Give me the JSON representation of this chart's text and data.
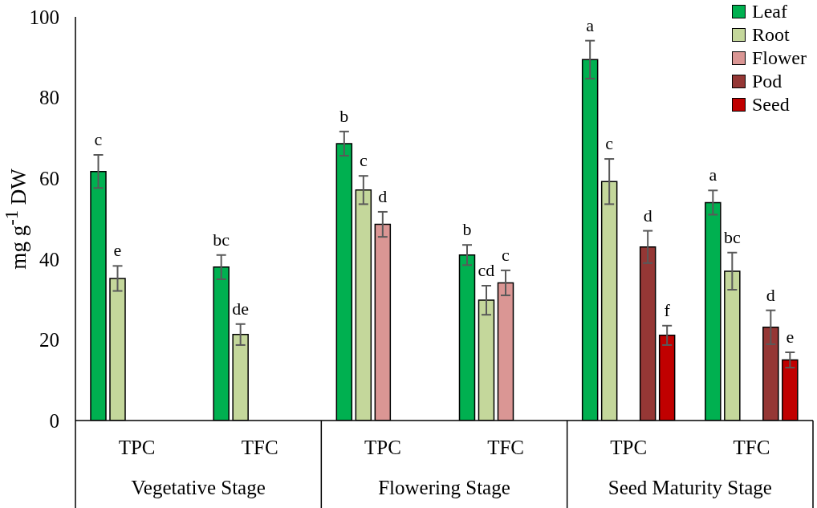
{
  "chart_data": {
    "type": "bar",
    "ylabel": "mg g$^{-1}$ DW",
    "categories": [
      "TPC",
      "TFC",
      "TPC",
      "TFC",
      "TPC",
      "TFC"
    ],
    "annotations": [
      "Vegetative Stage",
      "Flowering Stage",
      "Seed Maturity Stage"
    ],
    "series": [
      {
        "name": "Leaf",
        "color": "#00b050",
        "values": [
          61.7,
          38.0,
          68.6,
          41.0,
          89.4,
          54.0
        ],
        "errors": [
          4.1,
          3.0,
          3.0,
          2.5,
          4.7,
          3.0
        ],
        "value_labels": [
          "c",
          "bc",
          "b",
          "b",
          "a",
          "a"
        ]
      },
      {
        "name": "Root",
        "color": "#c4d79b",
        "values": [
          35.2,
          21.3,
          57.1,
          29.8,
          59.2,
          37.0
        ],
        "errors": [
          3.1,
          2.6,
          3.5,
          3.6,
          5.6,
          4.6
        ],
        "value_labels": [
          "e",
          "de",
          "c",
          "cd",
          "c",
          "bc"
        ]
      },
      {
        "name": "Flower",
        "color": "#da9694",
        "values": [
          null,
          null,
          48.6,
          34.1,
          null,
          null
        ],
        "errors": [
          null,
          null,
          3.1,
          3.1,
          null,
          null
        ],
        "value_labels": [
          null,
          null,
          "d",
          "c",
          null,
          null
        ]
      },
      {
        "name": "Pod",
        "color": "#953735",
        "values": [
          null,
          null,
          null,
          null,
          43.0,
          23.1
        ],
        "errors": [
          null,
          null,
          null,
          null,
          4.0,
          4.2
        ],
        "value_labels": [
          null,
          null,
          null,
          null,
          "d",
          "d"
        ]
      },
      {
        "name": "Seed",
        "color": "#c00000",
        "values": [
          null,
          null,
          null,
          null,
          21.1,
          15.0
        ],
        "errors": [
          null,
          null,
          null,
          null,
          2.4,
          1.9
        ],
        "value_labels": [
          null,
          null,
          null,
          null,
          "f",
          "e"
        ]
      }
    ],
    "ylim": [
      0,
      100
    ],
    "yticks": [
      0,
      20,
      40,
      60,
      80,
      100
    ],
    "legend": "top right"
  }
}
